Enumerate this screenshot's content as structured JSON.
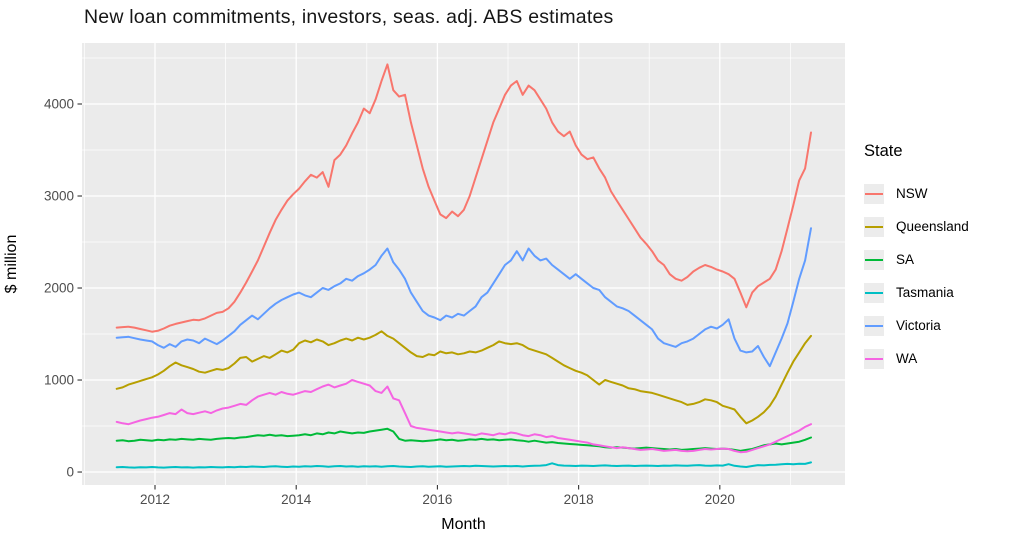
{
  "title": "New loan commitments, investors, seas. adj. ABS estimates",
  "chart_data": {
    "type": "line",
    "xlabel": "Month",
    "ylabel": "$ million",
    "legend_title": "State",
    "legend_position": "right",
    "grid": true,
    "panel_bg": "#EBEBEB",
    "grid_color": "#FFFFFF",
    "tick_label_color": "#4D4D4D",
    "x_ticks": [
      2012,
      2014,
      2016,
      2018,
      2020
    ],
    "x_tick_labels": [
      "2012",
      "2014",
      "2016",
      "2018",
      "2020"
    ],
    "x_minor_ticks": [
      2011,
      2013,
      2015,
      2017,
      2019,
      2021
    ],
    "y_ticks": [
      0,
      1000,
      2000,
      3000,
      4000
    ],
    "y_tick_labels": [
      "0",
      "1000",
      "2000",
      "3000",
      "4000"
    ],
    "y_minor_ticks": [
      500,
      1500,
      2500,
      3500,
      4500
    ],
    "xlim": [
      2010.966,
      2021.773
    ],
    "ylim": [
      -141,
      4663
    ],
    "x_start_decimal": 2011.458,
    "x_step_decimal": 0.0833333,
    "x_unit": "monthly, Jun 2011 - Apr 2021",
    "series": [
      {
        "name": "NSW",
        "color": "#F8766D",
        "values": [
          1570,
          1575,
          1580,
          1570,
          1555,
          1540,
          1525,
          1535,
          1560,
          1590,
          1610,
          1625,
          1640,
          1655,
          1650,
          1670,
          1700,
          1730,
          1740,
          1780,
          1850,
          1950,
          2060,
          2180,
          2300,
          2450,
          2600,
          2740,
          2850,
          2950,
          3020,
          3080,
          3160,
          3230,
          3200,
          3260,
          3100,
          3390,
          3450,
          3550,
          3680,
          3800,
          3950,
          3900,
          4050,
          4250,
          4430,
          4150,
          4080,
          4100,
          3800,
          3550,
          3300,
          3100,
          2950,
          2800,
          2760,
          2830,
          2780,
          2850,
          3000,
          3200,
          3400,
          3600,
          3800,
          3950,
          4100,
          4200,
          4250,
          4100,
          4200,
          4150,
          4050,
          3950,
          3800,
          3700,
          3650,
          3700,
          3550,
          3450,
          3400,
          3420,
          3300,
          3200,
          3050,
          2950,
          2850,
          2750,
          2650,
          2550,
          2480,
          2400,
          2300,
          2250,
          2150,
          2100,
          2080,
          2120,
          2180,
          2220,
          2250,
          2230,
          2200,
          2180,
          2150,
          2100,
          1950,
          1790,
          1950,
          2020,
          2060,
          2100,
          2200,
          2400,
          2650,
          2900,
          3170,
          3300,
          3690
        ]
      },
      {
        "name": "Queensland",
        "color": "#B79F00",
        "values": [
          905,
          920,
          950,
          970,
          990,
          1010,
          1030,
          1060,
          1100,
          1150,
          1190,
          1160,
          1140,
          1120,
          1090,
          1080,
          1100,
          1120,
          1110,
          1130,
          1180,
          1240,
          1250,
          1200,
          1230,
          1260,
          1240,
          1280,
          1320,
          1300,
          1330,
          1400,
          1430,
          1410,
          1440,
          1420,
          1380,
          1400,
          1430,
          1450,
          1430,
          1460,
          1440,
          1460,
          1490,
          1530,
          1480,
          1450,
          1400,
          1350,
          1300,
          1260,
          1250,
          1280,
          1270,
          1310,
          1290,
          1300,
          1280,
          1290,
          1310,
          1300,
          1320,
          1350,
          1380,
          1420,
          1400,
          1390,
          1400,
          1380,
          1340,
          1320,
          1300,
          1280,
          1240,
          1200,
          1160,
          1130,
          1100,
          1080,
          1050,
          1000,
          950,
          1000,
          980,
          960,
          940,
          910,
          900,
          880,
          870,
          860,
          840,
          820,
          800,
          780,
          760,
          730,
          740,
          760,
          790,
          780,
          760,
          720,
          700,
          680,
          600,
          530,
          560,
          600,
          650,
          720,
          820,
          950,
          1080,
          1200,
          1300,
          1400,
          1480
        ]
      },
      {
        "name": "SA",
        "color": "#00BA38",
        "values": [
          340,
          345,
          335,
          340,
          350,
          345,
          340,
          350,
          345,
          355,
          350,
          360,
          355,
          350,
          360,
          355,
          350,
          360,
          365,
          370,
          365,
          375,
          380,
          390,
          400,
          395,
          405,
          395,
          400,
          390,
          395,
          400,
          410,
          400,
          420,
          410,
          430,
          420,
          440,
          430,
          420,
          430,
          425,
          440,
          450,
          460,
          470,
          440,
          360,
          340,
          345,
          340,
          335,
          340,
          345,
          355,
          345,
          350,
          340,
          345,
          355,
          350,
          360,
          350,
          355,
          345,
          350,
          355,
          345,
          340,
          330,
          340,
          330,
          320,
          325,
          315,
          310,
          305,
          300,
          295,
          290,
          285,
          280,
          270,
          265,
          270,
          265,
          260,
          255,
          260,
          265,
          260,
          255,
          250,
          245,
          250,
          240,
          245,
          250,
          255,
          260,
          255,
          250,
          255,
          250,
          240,
          230,
          240,
          250,
          270,
          290,
          300,
          310,
          300,
          310,
          320,
          330,
          350,
          375
        ]
      },
      {
        "name": "Tasmania",
        "color": "#00BFC4",
        "values": [
          52,
          55,
          50,
          48,
          53,
          50,
          55,
          50,
          48,
          52,
          55,
          50,
          53,
          48,
          52,
          50,
          55,
          52,
          50,
          55,
          52,
          58,
          55,
          60,
          58,
          55,
          60,
          62,
          58,
          55,
          60,
          58,
          62,
          60,
          65,
          62,
          58,
          62,
          65,
          60,
          62,
          58,
          62,
          60,
          62,
          58,
          62,
          65,
          60,
          58,
          55,
          60,
          62,
          58,
          60,
          62,
          58,
          60,
          62,
          65,
          62,
          68,
          65,
          62,
          60,
          62,
          65,
          62,
          65,
          60,
          65,
          68,
          70,
          75,
          95,
          75,
          70,
          68,
          65,
          70,
          68,
          65,
          70,
          72,
          68,
          65,
          68,
          70,
          65,
          68,
          70,
          68,
          65,
          70,
          68,
          72,
          70,
          68,
          72,
          75,
          70,
          68,
          72,
          70,
          85,
          68,
          60,
          55,
          65,
          75,
          72,
          78,
          80,
          85,
          88,
          85,
          90,
          88,
          105
        ]
      },
      {
        "name": "Victoria",
        "color": "#619CFF",
        "values": [
          1460,
          1465,
          1470,
          1455,
          1440,
          1430,
          1420,
          1380,
          1350,
          1390,
          1360,
          1420,
          1440,
          1430,
          1400,
          1450,
          1420,
          1390,
          1430,
          1480,
          1530,
          1600,
          1650,
          1700,
          1660,
          1720,
          1780,
          1830,
          1870,
          1900,
          1930,
          1950,
          1920,
          1900,
          1950,
          2000,
          1980,
          2020,
          2050,
          2100,
          2080,
          2130,
          2160,
          2200,
          2250,
          2350,
          2430,
          2280,
          2200,
          2100,
          1950,
          1850,
          1750,
          1700,
          1680,
          1650,
          1700,
          1680,
          1720,
          1700,
          1750,
          1800,
          1900,
          1950,
          2050,
          2150,
          2250,
          2300,
          2400,
          2300,
          2430,
          2350,
          2300,
          2320,
          2250,
          2200,
          2150,
          2100,
          2150,
          2100,
          2050,
          2000,
          1980,
          1900,
          1850,
          1800,
          1780,
          1750,
          1700,
          1650,
          1600,
          1550,
          1450,
          1400,
          1380,
          1360,
          1400,
          1420,
          1450,
          1500,
          1550,
          1580,
          1560,
          1600,
          1660,
          1450,
          1320,
          1300,
          1310,
          1370,
          1250,
          1150,
          1300,
          1450,
          1615,
          1850,
          2100,
          2300,
          2650
        ]
      },
      {
        "name": "WA",
        "color": "#F564E2",
        "values": [
          545,
          530,
          520,
          540,
          560,
          575,
          590,
          600,
          620,
          640,
          630,
          680,
          640,
          630,
          645,
          660,
          640,
          670,
          690,
          700,
          720,
          740,
          730,
          780,
          820,
          840,
          860,
          840,
          870,
          850,
          840,
          860,
          880,
          870,
          900,
          930,
          950,
          920,
          940,
          960,
          1000,
          980,
          960,
          940,
          880,
          860,
          930,
          800,
          780,
          640,
          500,
          480,
          470,
          460,
          450,
          440,
          430,
          420,
          430,
          420,
          410,
          400,
          420,
          410,
          400,
          420,
          410,
          430,
          420,
          400,
          390,
          410,
          400,
          380,
          390,
          370,
          360,
          350,
          340,
          330,
          320,
          300,
          290,
          280,
          270,
          260,
          270,
          260,
          250,
          240,
          245,
          250,
          240,
          230,
          235,
          240,
          230,
          225,
          230,
          240,
          250,
          245,
          250,
          255,
          250,
          230,
          215,
          220,
          240,
          260,
          280,
          300,
          330,
          360,
          390,
          420,
          450,
          490,
          520
        ]
      }
    ]
  }
}
